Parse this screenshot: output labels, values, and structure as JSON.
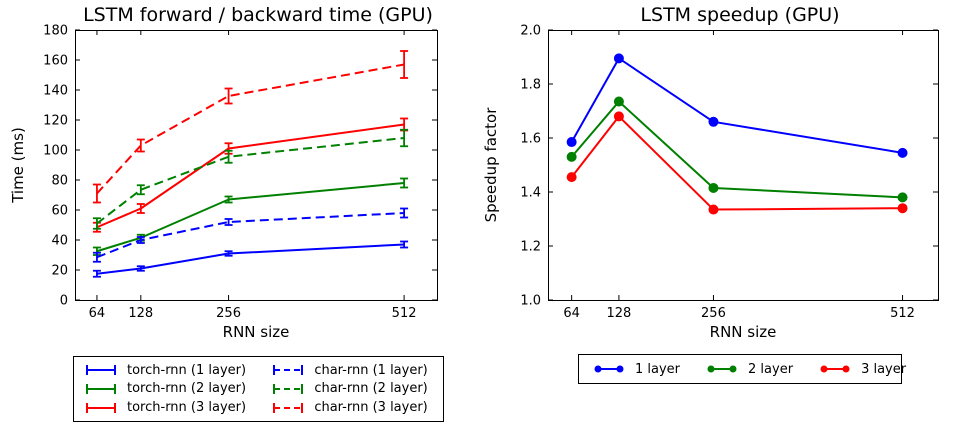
{
  "figure": {
    "background": "#ffffff",
    "text_color": "#000000",
    "accent_colors": {
      "blue": "#0000ff",
      "green": "#008000",
      "red": "#ff0000"
    }
  },
  "chart_data": [
    {
      "type": "line",
      "title": "LSTM forward / backward time (GPU)",
      "xlabel": "RNN size",
      "ylabel": "Time (ms)",
      "x": [
        64,
        128,
        256,
        512
      ],
      "xlim": [
        32,
        560
      ],
      "ylim": [
        0,
        180
      ],
      "xticks": [
        64,
        128,
        256,
        512
      ],
      "xtick_labels": [
        "64",
        "128",
        "256",
        "512"
      ],
      "yticks": [
        0,
        20,
        40,
        60,
        80,
        100,
        120,
        140,
        160,
        180
      ],
      "ytick_labels": [
        "0",
        "20",
        "40",
        "60",
        "80",
        "100",
        "120",
        "140",
        "160",
        "180"
      ],
      "grid": false,
      "legend_position": "below",
      "legend_style": "errorbar",
      "legend_columns": 2,
      "series": [
        {
          "name": "torch-rnn (1 layer)",
          "color": "#0000ff",
          "line": "solid",
          "values": [
            17.5,
            21,
            31,
            37
          ],
          "yerr": [
            2,
            1.5,
            1.5,
            2
          ]
        },
        {
          "name": "torch-rnn (2 layer)",
          "color": "#008000",
          "line": "solid",
          "values": [
            32.5,
            41.5,
            67,
            78
          ],
          "yerr": [
            2.5,
            2,
            2,
            3
          ]
        },
        {
          "name": "torch-rnn (3 layer)",
          "color": "#ff0000",
          "line": "solid",
          "values": [
            48.5,
            61,
            101,
            117
          ],
          "yerr": [
            3,
            3,
            3.5,
            4
          ]
        },
        {
          "name": "char-rnn (1 layer)",
          "color": "#0000ff",
          "line": "dashed",
          "values": [
            28.5,
            40,
            52,
            58
          ],
          "yerr": [
            3,
            2,
            2,
            3
          ]
        },
        {
          "name": "char-rnn (2 layer)",
          "color": "#008000",
          "line": "dashed",
          "values": [
            51,
            73.5,
            95.5,
            108
          ],
          "yerr": [
            3.5,
            3,
            4,
            5.5
          ]
        },
        {
          "name": "char-rnn (3 layer)",
          "color": "#ff0000",
          "line": "dashed",
          "values": [
            71,
            103,
            136,
            157
          ],
          "yerr": [
            6,
            4,
            5,
            9
          ]
        }
      ]
    },
    {
      "type": "line",
      "title": "LSTM speedup (GPU)",
      "xlabel": "RNN size",
      "ylabel": "Speedup factor",
      "x": [
        64,
        128,
        256,
        512
      ],
      "xlim": [
        32,
        560
      ],
      "ylim": [
        1.0,
        2.0
      ],
      "xticks": [
        64,
        128,
        256,
        512
      ],
      "xtick_labels": [
        "64",
        "128",
        "256",
        "512"
      ],
      "yticks": [
        1.0,
        1.2,
        1.4,
        1.6,
        1.8,
        2.0
      ],
      "ytick_labels": [
        "1.0",
        "1.2",
        "1.4",
        "1.6",
        "1.8",
        "2.0"
      ],
      "grid": false,
      "legend_position": "below",
      "legend_style": "line-markers",
      "legend_columns": 3,
      "series": [
        {
          "name": "1 layer",
          "color": "#0000ff",
          "line": "solid",
          "marker": "circle",
          "values": [
            1.585,
            1.895,
            1.66,
            1.545
          ]
        },
        {
          "name": "2 layer",
          "color": "#008000",
          "line": "solid",
          "marker": "circle",
          "values": [
            1.53,
            1.735,
            1.415,
            1.38
          ]
        },
        {
          "name": "3 layer",
          "color": "#ff0000",
          "line": "solid",
          "marker": "circle",
          "values": [
            1.455,
            1.68,
            1.335,
            1.34
          ]
        }
      ]
    }
  ]
}
